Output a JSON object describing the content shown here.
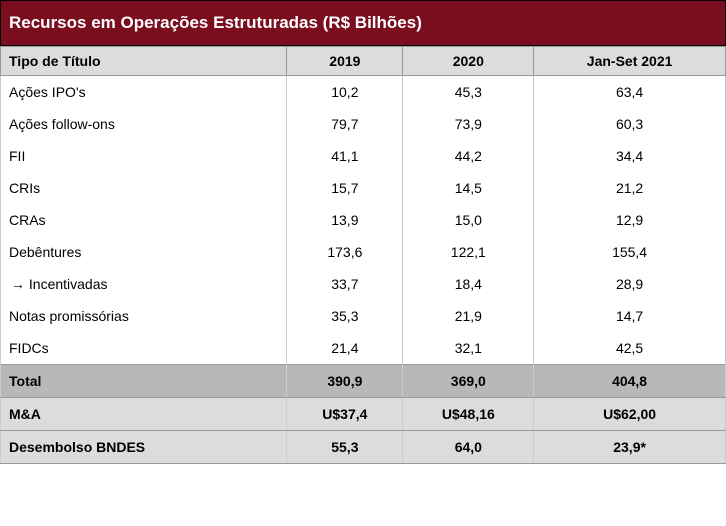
{
  "table": {
    "title": "Recursos em Operações Estruturadas (R$ Bilhões)",
    "columns": [
      "Tipo de Título",
      "2019",
      "2020",
      "Jan-Set 2021"
    ],
    "rows": [
      {
        "label": "Ações IPO's",
        "v2019": "10,2",
        "v2020": "45,3",
        "v2021": "63,4",
        "indent": false
      },
      {
        "label": "Ações follow-ons",
        "v2019": "79,7",
        "v2020": "73,9",
        "v2021": "60,3",
        "indent": false
      },
      {
        "label": "FII",
        "v2019": "41,1",
        "v2020": "44,2",
        "v2021": "34,4",
        "indent": false
      },
      {
        "label": "CRIs",
        "v2019": "15,7",
        "v2020": "14,5",
        "v2021": "21,2",
        "indent": false
      },
      {
        "label": "CRAs",
        "v2019": "13,9",
        "v2020": "15,0",
        "v2021": "12,9",
        "indent": false
      },
      {
        "label": "Debêntures",
        "v2019": "173,6",
        "v2020": "122,1",
        "v2021": "155,4",
        "indent": false
      },
      {
        "label": "→ Incentivadas",
        "v2019": "33,7",
        "v2020": "18,4",
        "v2021": "28,9",
        "indent": true
      },
      {
        "label": "Notas promissórias",
        "v2019": "35,3",
        "v2020": "21,9",
        "v2021": "14,7",
        "indent": false
      },
      {
        "label": "FIDCs",
        "v2019": "21,4",
        "v2020": "32,1",
        "v2021": "42,5",
        "indent": false
      }
    ],
    "total": {
      "label": "Total",
      "v2019": "390,9",
      "v2020": "369,0",
      "v2021": "404,8"
    },
    "footer": [
      {
        "label": "M&A",
        "v2019": "U$37,4",
        "v2020": "U$48,16",
        "v2021": "U$62,00"
      },
      {
        "label": "Desembolso BNDES",
        "v2019": "55,3",
        "v2020": "64,0",
        "v2021": "23,9*"
      }
    ],
    "styling": {
      "header_bg": "#7a0e1e",
      "header_text_color": "#ffffff",
      "header_fontsize": 17,
      "col_header_bg": "#dcdcdc",
      "total_bg": "#b8b8b8",
      "footer_bg": "#dcdcdc",
      "body_fontsize": 14,
      "font_family": "Arial, sans-serif",
      "border_color": "#999"
    }
  }
}
